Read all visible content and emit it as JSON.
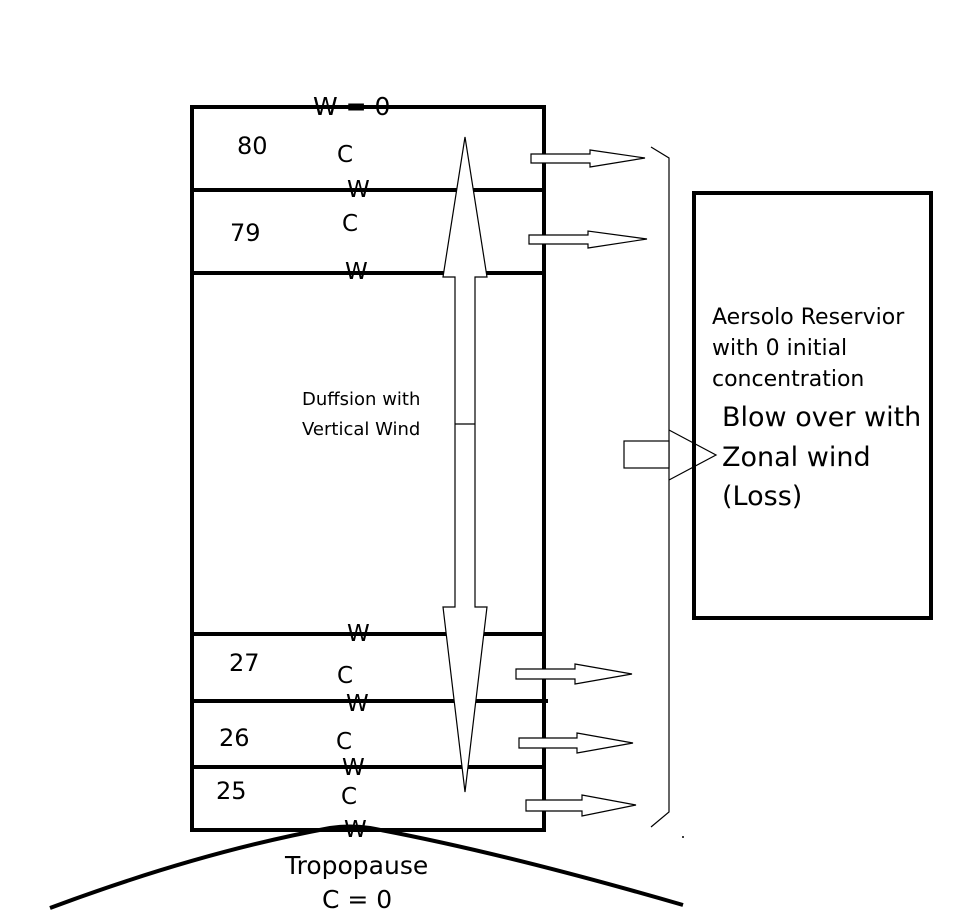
{
  "labels": {
    "top_boundary": "W = 0",
    "w": "W",
    "c": "C",
    "diffusion_line1": "Duffsion with",
    "diffusion_line2": "Vertical Wind",
    "tropopause": "Tropopause",
    "bottom_boundary": "C = 0"
  },
  "layers": [
    "80",
    "79",
    "27",
    "26",
    "25"
  ],
  "reservoir": {
    "line1": "Aersolo Reservior",
    "line2": "with 0 initial",
    "line3": "concentration",
    "loss_line1": "Blow over with",
    "loss_line2": "Zonal wind",
    "loss_line3": "(Loss)"
  }
}
